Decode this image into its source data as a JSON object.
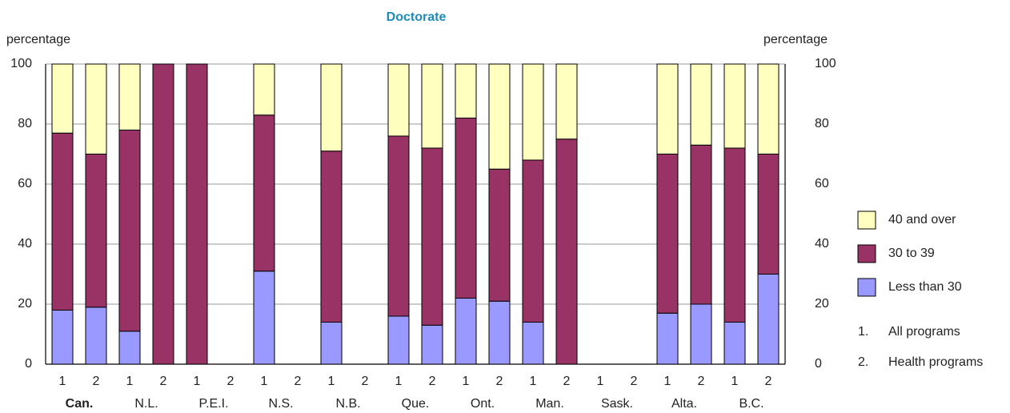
{
  "chart_data": {
    "type": "stacked_bar",
    "title": "Doctorate",
    "y_label": "percentage",
    "y2_label": "percentage",
    "categories": [
      "1",
      "2",
      "1",
      "2",
      "1",
      "2",
      "1",
      "2",
      "1",
      "2",
      "1",
      "2",
      "1",
      "2",
      "1",
      "2",
      "1",
      "2",
      "1",
      "2",
      "1",
      "2"
    ],
    "groups": [
      "Can.",
      "N.L.",
      "P.E.I.",
      "N.S.",
      "N.B.",
      "Que.",
      "Ont.",
      "Man.",
      "Sask.",
      "Alta.",
      "B.C."
    ],
    "series": [
      {
        "name": "Less than 30",
        "color": "#9999ff",
        "values": [
          18,
          19,
          11,
          0,
          0,
          null,
          31,
          null,
          14,
          null,
          16,
          13,
          22,
          21,
          14,
          0,
          null,
          null,
          17,
          20,
          14,
          30
        ]
      },
      {
        "name": "30 to 39",
        "color": "#993366",
        "values": [
          59,
          51,
          67,
          100,
          100,
          null,
          52,
          null,
          57,
          null,
          60,
          59,
          60,
          44,
          54,
          75,
          null,
          null,
          53,
          53,
          58,
          40
        ]
      },
      {
        "name": "40 and over",
        "color": "#ffffc0",
        "values": [
          23,
          30,
          22,
          0,
          0,
          null,
          17,
          null,
          29,
          null,
          24,
          28,
          18,
          35,
          32,
          25,
          null,
          null,
          30,
          27,
          28,
          30
        ]
      }
    ],
    "ylim": [
      0,
      100
    ],
    "yticks": [
      0,
      20,
      40,
      60,
      80,
      100
    ],
    "grid": true,
    "notes": [
      {
        "key": "1.",
        "text": "All programs"
      },
      {
        "key": "2.",
        "text": "Health programs"
      }
    ]
  }
}
